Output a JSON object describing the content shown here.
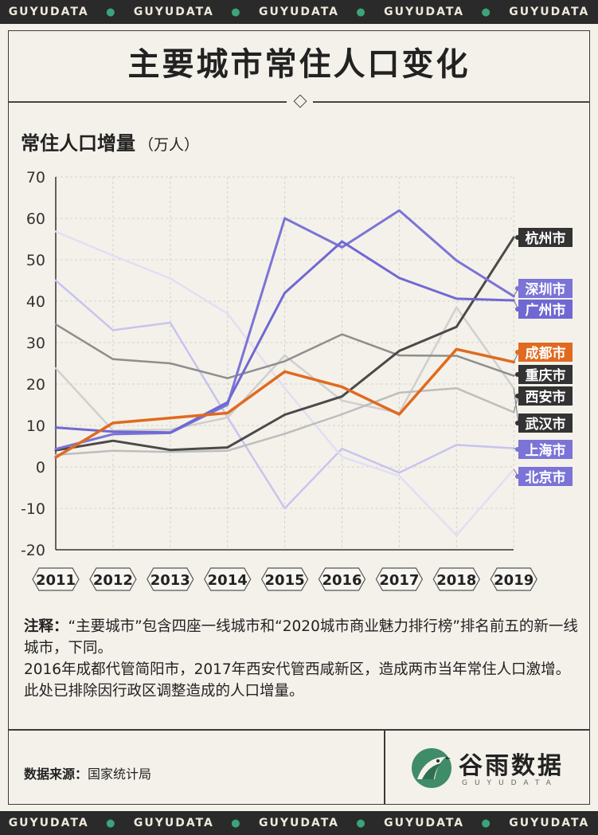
{
  "ticker": {
    "items": [
      "GUYUDATA",
      "GUYUDATA",
      "GUYUDATA",
      "GUYUDATA",
      "GUYUDATA"
    ],
    "dot": "●"
  },
  "header": {
    "title": "主要城市常住人口变化"
  },
  "chart_data": {
    "type": "line",
    "title": "常住人口增量",
    "ylabel_unit": "（万人）",
    "x": [
      "2011",
      "2012",
      "2013",
      "2014",
      "2015",
      "2016",
      "2017",
      "2018",
      "2019"
    ],
    "ylim": [
      -20,
      70
    ],
    "yticks": [
      -20,
      -10,
      0,
      10,
      20,
      30,
      40,
      50,
      60,
      70
    ],
    "grid": true,
    "series": [
      {
        "name": "上海市",
        "color": "#c8c4f0",
        "width": 2.5,
        "values": [
          45,
          33,
          34.8,
          12,
          -10,
          4.4,
          -1.4,
          5.3,
          4.5
        ]
      },
      {
        "name": "北京市",
        "color": "#e2def4",
        "width": 2.5,
        "values": [
          56.8,
          51,
          45.5,
          37,
          19,
          2.4,
          -2.2,
          -16.5,
          -0.6
        ]
      },
      {
        "name": "武汉市",
        "color": "#cfcfcf",
        "width": 2.5,
        "values": [
          23.8,
          8.8,
          9,
          11.9,
          26.9,
          16,
          13,
          38.5,
          19
        ]
      },
      {
        "name": "西安市",
        "color": "#bdbdbd",
        "width": 2.5,
        "values": [
          2.9,
          3.9,
          3.6,
          3.9,
          8,
          12.7,
          17.9,
          19,
          13.2
        ]
      },
      {
        "name": "重庆市",
        "color": "#8e8e8e",
        "width": 2.5,
        "values": [
          34.4,
          26,
          25,
          21.4,
          25.5,
          32,
          26.9,
          26.8,
          22
        ]
      },
      {
        "name": "杭州市",
        "color": "#4a4a4a",
        "width": 3,
        "values": [
          4,
          6.3,
          4.1,
          4.7,
          12.6,
          17,
          28,
          33.8,
          55.4
        ]
      },
      {
        "name": "深圳市",
        "color": "#7b74d6",
        "width": 3,
        "values": [
          4.3,
          7.9,
          8.2,
          15,
          60,
          53,
          61.9,
          49.8,
          41.2
        ]
      },
      {
        "name": "广州市",
        "color": "#6f68d2",
        "width": 3,
        "values": [
          9.5,
          8.5,
          8.3,
          15.6,
          42,
          54.4,
          45.6,
          40.6,
          40.2
        ]
      },
      {
        "name": "成都市",
        "color": "#e06a20",
        "width": 3.5,
        "values": [
          2.3,
          10.6,
          11.8,
          13,
          23,
          19.3,
          12.7,
          28.4,
          25.3
        ]
      }
    ],
    "end_labels": [
      {
        "name": "杭州市",
        "bg": "#333333"
      },
      {
        "name": "深圳市",
        "bg": "#7b74d6"
      },
      {
        "name": "广州市",
        "bg": "#6f68d2"
      },
      {
        "name": "成都市",
        "bg": "#e06a20"
      },
      {
        "name": "重庆市",
        "bg": "#333333"
      },
      {
        "name": "西安市",
        "bg": "#333333"
      },
      {
        "name": "武汉市",
        "bg": "#333333"
      },
      {
        "name": "上海市",
        "bg": "#7b74d6"
      },
      {
        "name": "北京市",
        "bg": "#7b74d6"
      }
    ]
  },
  "notes": {
    "label": "注释：",
    "line1": "“主要城市”包含四座一线城市和“2020城市商业魅力排行榜”排名前五的新一线城市，下同。",
    "line2": "2016年成都代管简阳市，2017年西安代管西咸新区，造成两市当年常住人口激增。此处已排除因行政区调整造成的人口增量。"
  },
  "footer": {
    "source_label": "数据来源：",
    "source_value": "国家统计局",
    "brand": "谷雨数据",
    "brand_sub": "GUYUDATA"
  }
}
